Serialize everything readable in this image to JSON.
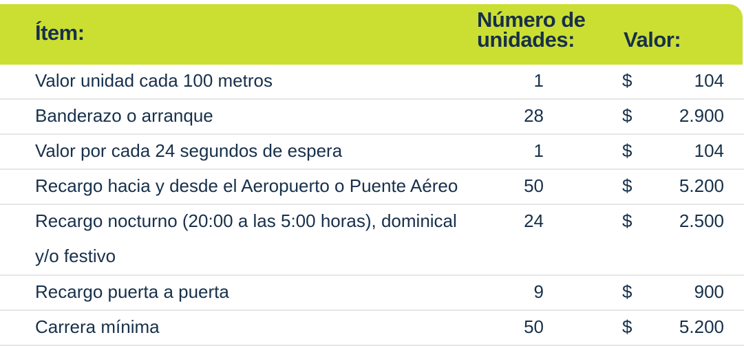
{
  "table": {
    "headers": {
      "item": "Ítem:",
      "units_line1": "Número de",
      "units_line2": "unidades:",
      "value": "Valor:"
    },
    "rows": [
      {
        "item": "Valor unidad cada 100 metros",
        "units": "1",
        "currency": "$",
        "value": "104"
      },
      {
        "item": "Banderazo o arranque",
        "units": "28",
        "currency": "$",
        "value": "2.900"
      },
      {
        "item": "Valor por cada 24 segundos de espera",
        "units": "1",
        "currency": "$",
        "value": "104"
      },
      {
        "item": "Recargo hacia y desde el Aeropuerto o Puente Aéreo",
        "units": "50",
        "currency": "$",
        "value": "5.200"
      },
      {
        "item_line1": "Recargo nocturno (20:00 a las 5:00 horas), dominical",
        "item_line2": "y/o festivo",
        "units": "24",
        "currency": "$",
        "value": "2.500"
      },
      {
        "item": "Recargo puerta a puerta",
        "units": "9",
        "currency": "$",
        "value": "900"
      },
      {
        "item": "Carrera mínima",
        "units": "50",
        "currency": "$",
        "value": "5.200"
      }
    ]
  },
  "colors": {
    "header_bg": "#cbdf32",
    "text": "#17304b",
    "row_divider": "#e6e6e6"
  }
}
